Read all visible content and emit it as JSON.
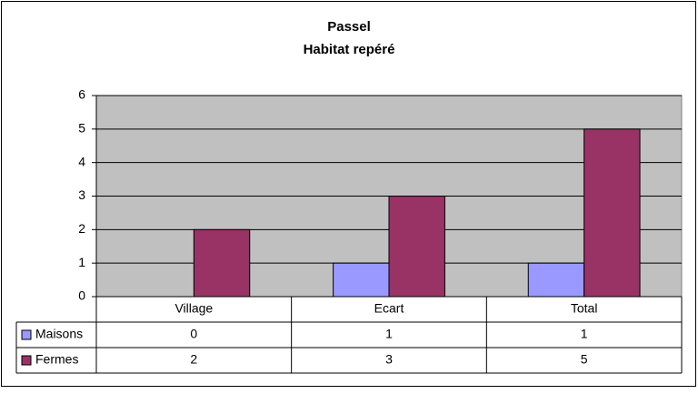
{
  "chart_data": {
    "type": "bar",
    "title": "Passel",
    "subtitle": "Habitat repéré",
    "categories": [
      "Village",
      "Ecart",
      "Total"
    ],
    "series": [
      {
        "name": "Maisons",
        "color": "#9999ff",
        "values": [
          0,
          1,
          1
        ]
      },
      {
        "name": "Fermes",
        "color": "#993366",
        "values": [
          2,
          3,
          5
        ]
      }
    ],
    "ylim": [
      0,
      6
    ],
    "yticks": [
      0,
      1,
      2,
      3,
      4,
      5,
      6
    ],
    "grid": true,
    "plot_background": "#c0c0c0"
  }
}
